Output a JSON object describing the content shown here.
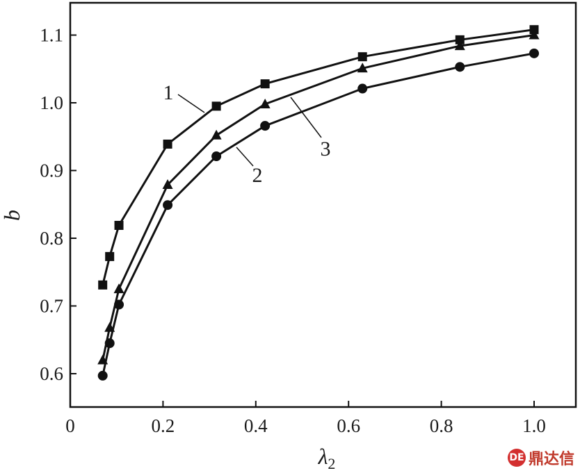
{
  "chart_data": {
    "type": "line",
    "title": "",
    "xlabel": "λ",
    "xlabel_sub": "2",
    "ylabel": "b",
    "xlim": [
      0,
      1.1
    ],
    "ylim": [
      0.55,
      1.15
    ],
    "xticks": [
      "0",
      "0.2",
      "0.4",
      "0.6",
      "0.8",
      "1.0"
    ],
    "yticks": [
      "0.6",
      "0.7",
      "0.8",
      "0.9",
      "1.0",
      "1.1"
    ],
    "grid": false,
    "series": [
      {
        "name": "1",
        "marker": "square",
        "x": [
          0.07,
          0.085,
          0.105,
          0.21,
          0.315,
          0.42,
          0.63,
          0.84,
          1.0
        ],
        "y": [
          0.731,
          0.773,
          0.819,
          0.939,
          0.995,
          1.028,
          1.068,
          1.093,
          1.108
        ]
      },
      {
        "name": "2",
        "marker": "circle",
        "x": [
          0.07,
          0.085,
          0.105,
          0.21,
          0.315,
          0.42,
          0.63,
          0.84,
          1.0
        ],
        "y": [
          0.597,
          0.645,
          0.702,
          0.849,
          0.921,
          0.966,
          1.021,
          1.053,
          1.073
        ]
      },
      {
        "name": "3",
        "marker": "triangle",
        "x": [
          0.07,
          0.085,
          0.105,
          0.21,
          0.315,
          0.42,
          0.63,
          0.84,
          1.0
        ],
        "y": [
          0.62,
          0.668,
          0.725,
          0.879,
          0.952,
          0.998,
          1.051,
          1.084,
          1.1
        ]
      }
    ],
    "annotations": [
      "1",
      "2",
      "3"
    ]
  },
  "watermark": {
    "badge": "DE",
    "text": "鼎达信"
  }
}
